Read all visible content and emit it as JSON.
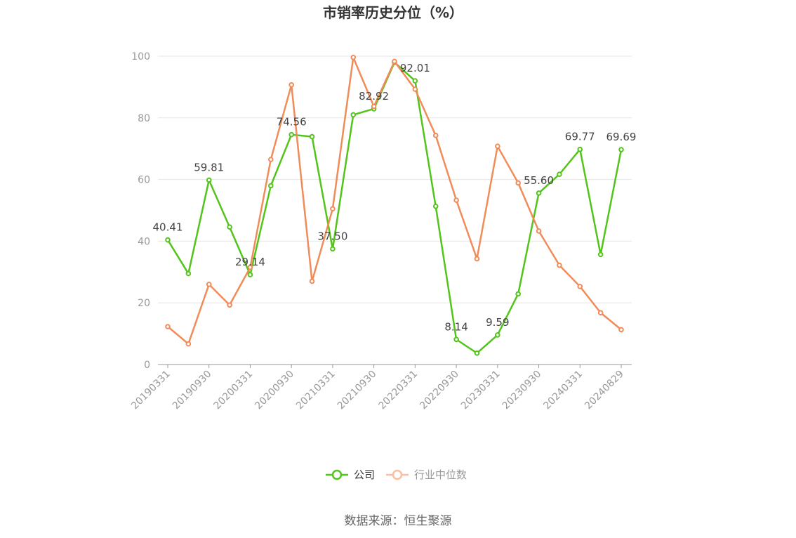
{
  "chart_data": {
    "type": "line",
    "title": "市销率历史分位（%）",
    "x": [
      "20190331",
      "20190630",
      "20190930",
      "20191231",
      "20200331",
      "20200630",
      "20200930",
      "20201231",
      "20210331",
      "20210630",
      "20210930",
      "20211231",
      "20220331",
      "20220630",
      "20220930",
      "20221231",
      "20230331",
      "20230630",
      "20230930",
      "20231231",
      "20240331",
      "20240630",
      "20240829"
    ],
    "x_tick_labels": [
      "20190331",
      "20190930",
      "20200331",
      "20200930",
      "20210331",
      "20210930",
      "20220331",
      "20220930",
      "20230331",
      "20230930",
      "20240331",
      "20240829"
    ],
    "ylim": [
      0,
      100
    ],
    "y_ticks": [
      0,
      20,
      40,
      60,
      80,
      100
    ],
    "grid": true,
    "legend_position": "bottom",
    "series": [
      {
        "name": "公司",
        "color": "#52c41a",
        "values": [
          40.41,
          29.5,
          59.81,
          44.6,
          29.14,
          58.0,
          74.56,
          73.9,
          37.5,
          81.0,
          82.92,
          98.0,
          92.01,
          51.3,
          8.14,
          3.7,
          9.59,
          22.9,
          55.6,
          61.7,
          69.77,
          35.7,
          69.69
        ],
        "labeled_points": [
          {
            "index": 0,
            "text": "40.41"
          },
          {
            "index": 2,
            "text": "59.81"
          },
          {
            "index": 4,
            "text": "29.14"
          },
          {
            "index": 6,
            "text": "74.56"
          },
          {
            "index": 8,
            "text": "37.50"
          },
          {
            "index": 10,
            "text": "82.92"
          },
          {
            "index": 12,
            "text": "92.01"
          },
          {
            "index": 14,
            "text": "8.14"
          },
          {
            "index": 16,
            "text": "9.59"
          },
          {
            "index": 18,
            "text": "55.60"
          },
          {
            "index": 20,
            "text": "69.77"
          },
          {
            "index": 22,
            "text": "69.69"
          }
        ]
      },
      {
        "name": "行业中位数",
        "color": "#f08c5a",
        "legend_color": "#f8bfa3",
        "values": [
          12.3,
          6.7,
          26.0,
          19.3,
          31.5,
          66.5,
          90.7,
          27.0,
          50.5,
          99.6,
          83.7,
          98.3,
          89.3,
          74.3,
          53.3,
          34.3,
          70.8,
          58.9,
          43.3,
          32.2,
          25.3,
          16.8,
          11.3
        ]
      }
    ]
  },
  "footer": {
    "source": "数据来源：恒生聚源"
  }
}
